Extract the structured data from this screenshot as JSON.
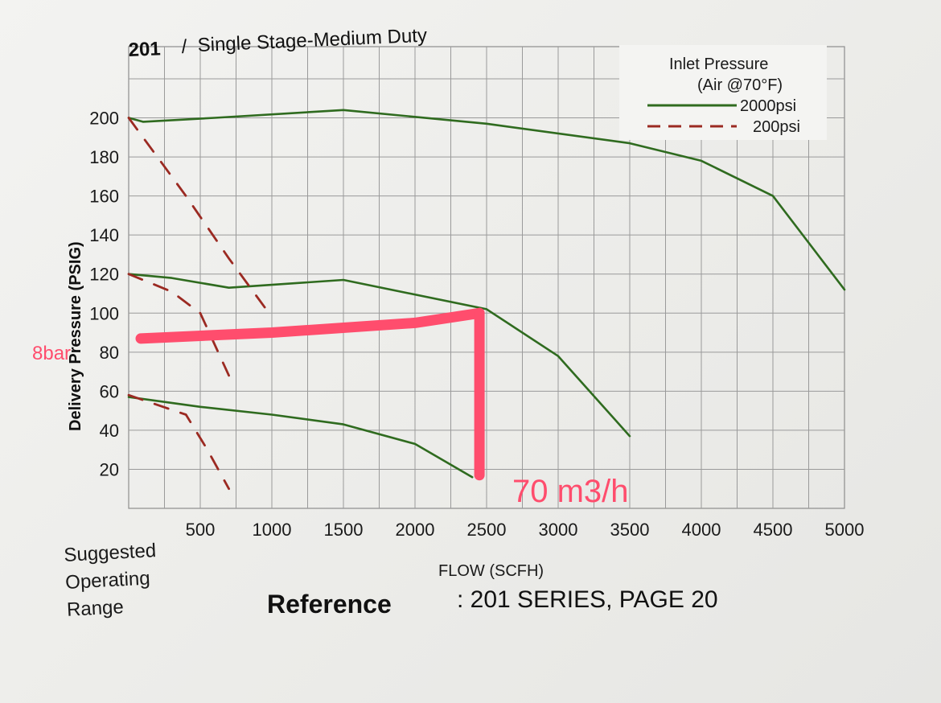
{
  "chart_data": {
    "type": "line",
    "title_number": "201",
    "title_sep": "/",
    "title_text": "Single Stage-Medium Duty",
    "xlabel": "FLOW (SCFH)",
    "ylabel": "Delivery Pressure (PSIG)",
    "xlim": [
      0,
      5000
    ],
    "ylim": [
      0,
      220
    ],
    "x_ticks": [
      500,
      1000,
      1500,
      2000,
      2500,
      3000,
      3500,
      4000,
      4500,
      5000
    ],
    "y_ticks": [
      20,
      40,
      60,
      80,
      100,
      120,
      140,
      160,
      180,
      200
    ],
    "grid": true,
    "legend": {
      "title_line1": "Inlet Pressure",
      "title_line2": "(Air @70°F)",
      "position": "top-right",
      "entries": [
        {
          "label": "2000psi",
          "color": "#2f6b1f",
          "style": "solid"
        },
        {
          "label": "200psi",
          "color": "#9b2a22",
          "style": "dashed"
        }
      ]
    },
    "series": [
      {
        "name": "2000psi",
        "setpoint": 200,
        "color": "#2f6b1f",
        "style": "solid",
        "x": [
          0,
          100,
          600,
          1500,
          2500,
          3500,
          4000,
          4500,
          5000
        ],
        "y": [
          200,
          198,
          200,
          204,
          197,
          187,
          178,
          160,
          112
        ]
      },
      {
        "name": "2000psi",
        "setpoint": 120,
        "color": "#2f6b1f",
        "style": "solid",
        "x": [
          0,
          300,
          700,
          1500,
          2500,
          3000,
          3500
        ],
        "y": [
          120,
          118,
          113,
          117,
          102,
          78,
          37
        ]
      },
      {
        "name": "2000psi",
        "setpoint": 60,
        "color": "#2f6b1f",
        "style": "solid",
        "x": [
          0,
          500,
          1000,
          1500,
          2000,
          2400
        ],
        "y": [
          57,
          52,
          48,
          43,
          33,
          16
        ]
      },
      {
        "name": "200psi",
        "setpoint": 200,
        "color": "#9b2a22",
        "style": "dashed",
        "x": [
          0,
          400,
          700,
          1000
        ],
        "y": [
          200,
          160,
          128,
          98
        ]
      },
      {
        "name": "200psi",
        "setpoint": 120,
        "color": "#9b2a22",
        "style": "dashed",
        "x": [
          0,
          300,
          500,
          700
        ],
        "y": [
          120,
          111,
          100,
          68
        ]
      },
      {
        "name": "200psi",
        "setpoint": 60,
        "color": "#9b2a22",
        "style": "dashed",
        "x": [
          0,
          400,
          550,
          700
        ],
        "y": [
          58,
          48,
          30,
          10
        ]
      }
    ],
    "annotations": {
      "line_color": "#ff4d6d",
      "pressure_label": "8bar",
      "flow_label": "70 m3/h",
      "horizontal": {
        "x": [
          0,
          1000,
          2000,
          2450
        ],
        "y": [
          87,
          90,
          95,
          100
        ]
      },
      "vertical": {
        "x": 2450,
        "y": [
          100,
          17
        ]
      }
    }
  },
  "side_note": [
    "Suggested",
    "Operating",
    "Range"
  ],
  "reference": {
    "bold": "Reference",
    "rest": ": 201 SERIES, PAGE 20"
  }
}
